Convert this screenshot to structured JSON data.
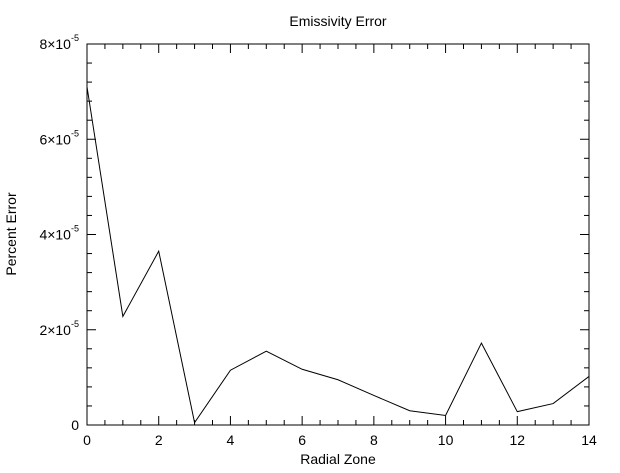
{
  "chart_data": {
    "type": "line",
    "title": "Emissivity Error",
    "xlabel": "Radial Zone",
    "ylabel": "Percent Error",
    "xlim": [
      0,
      14
    ],
    "ylim": [
      0,
      8e-05
    ],
    "x_ticks": [
      0,
      2,
      4,
      6,
      8,
      10,
      12,
      14
    ],
    "x_tick_labels": [
      "0",
      "2",
      "4",
      "6",
      "8",
      "10",
      "12",
      "14"
    ],
    "y_ticks": [
      0,
      2e-05,
      4e-05,
      6e-05,
      8e-05
    ],
    "y_tick_labels": [
      {
        "mantissa": "0",
        "exponent": ""
      },
      {
        "mantissa": "2×10",
        "exponent": "-5"
      },
      {
        "mantissa": "4×10",
        "exponent": "-5"
      },
      {
        "mantissa": "6×10",
        "exponent": "-5"
      },
      {
        "mantissa": "8×10",
        "exponent": "-5"
      }
    ],
    "x_minor_per_major": 4,
    "y_minor_per_major": 5,
    "grid": false,
    "line_color": "#000000",
    "series": [
      {
        "x": [
          0,
          1,
          2,
          3,
          4,
          5,
          6,
          7,
          8,
          9,
          10,
          11,
          12,
          13,
          14
        ],
        "values": [
          7.1e-05,
          2.28e-05,
          3.65e-05,
          5e-07,
          1.15e-05,
          1.55e-05,
          1.17e-05,
          9.5e-06,
          6.2e-06,
          3e-06,
          2e-06,
          1.72e-05,
          2.8e-06,
          4.5e-06,
          1.02e-05
        ]
      }
    ]
  }
}
